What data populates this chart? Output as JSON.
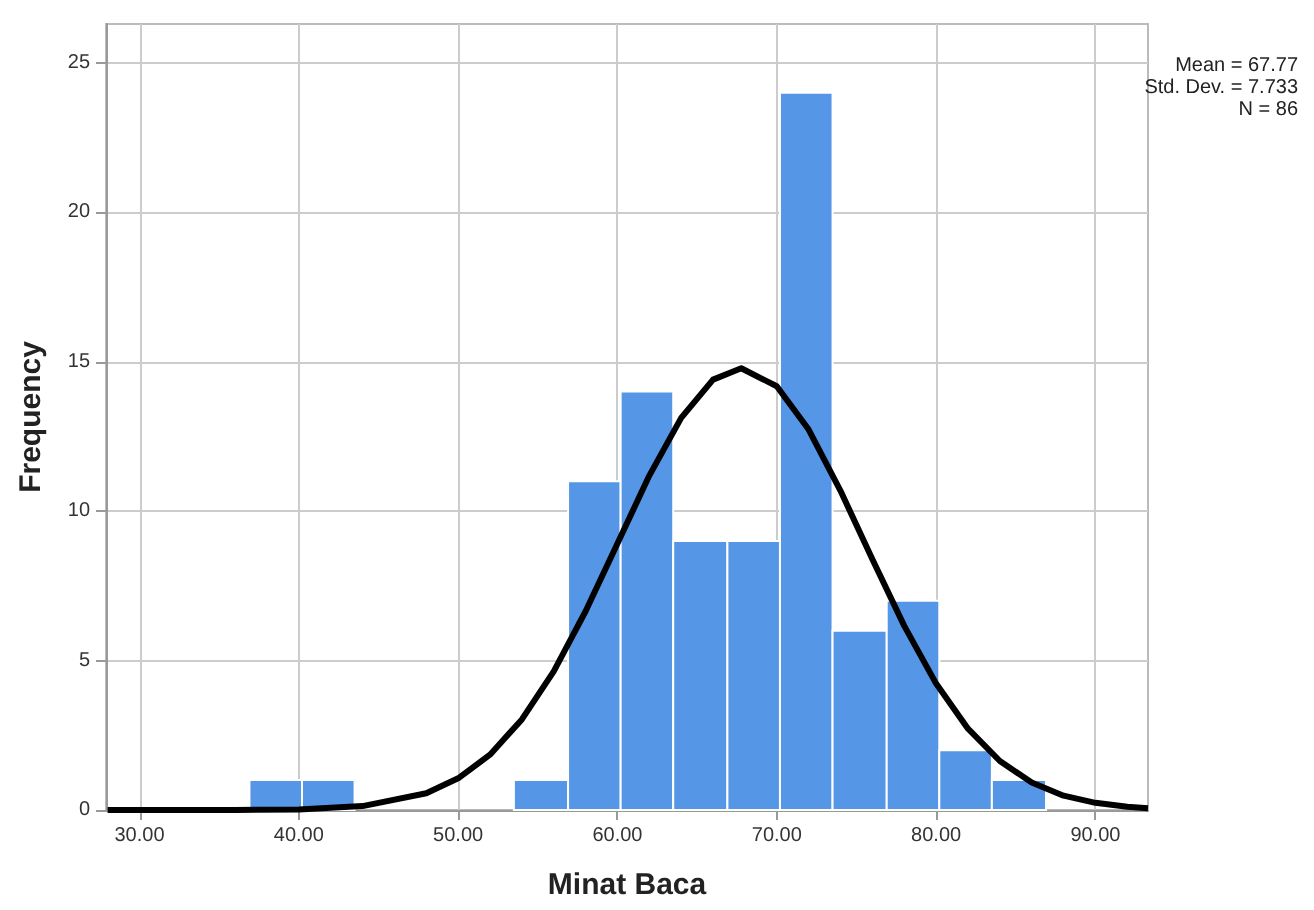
{
  "chart_data": {
    "type": "histogram",
    "xlabel": "Minat Baca",
    "ylabel": "Frequency",
    "bins": [
      36.9,
      40.2,
      43.5,
      53.5,
      56.9,
      60.2,
      63.5,
      66.9,
      70.2,
      73.5,
      76.9,
      80.2,
      83.5,
      86.9
    ],
    "values": [
      1,
      1,
      0,
      1,
      11,
      14,
      9,
      9,
      24,
      6,
      7,
      2,
      1
    ],
    "color": "#5596e6",
    "series": [
      {
        "type": "line",
        "color": "#000000",
        "x": [
          28,
          32,
          36,
          40,
          44,
          48,
          50,
          52,
          54,
          56,
          58,
          60,
          62,
          64,
          66,
          67.77,
          70,
          72,
          74,
          76,
          78,
          80,
          82,
          84,
          86,
          88,
          90,
          92,
          93.3
        ],
        "values": [
          0,
          0,
          0,
          0.02,
          0.13,
          0.56,
          1.06,
          1.85,
          3.03,
          4.64,
          6.65,
          8.92,
          11.19,
          13.12,
          14.4,
          14.78,
          14.18,
          12.73,
          10.68,
          8.39,
          6.16,
          4.23,
          2.72,
          1.64,
          0.92,
          0.48,
          0.24,
          0.11,
          0.06
        ]
      }
    ],
    "xlim": [
      27.9,
      93.3
    ],
    "xticks": [
      {
        "value": 30,
        "label": "30.00"
      },
      {
        "value": 40,
        "label": "40.00"
      },
      {
        "value": 50,
        "label": "50.00"
      },
      {
        "value": 60,
        "label": "60.00"
      },
      {
        "value": 70,
        "label": "70.00"
      },
      {
        "value": 80,
        "label": "80.00"
      },
      {
        "value": 90,
        "label": "90.00"
      }
    ],
    "ylim": [
      0,
      26.3
    ],
    "yticks": [
      0,
      5,
      10,
      15,
      20,
      25
    ],
    "grid": true,
    "marker": "none",
    "line_style": "solid",
    "annotations": [
      "Mean = 67.77",
      "Std. Dev. = 7.733",
      "N = 86"
    ]
  }
}
